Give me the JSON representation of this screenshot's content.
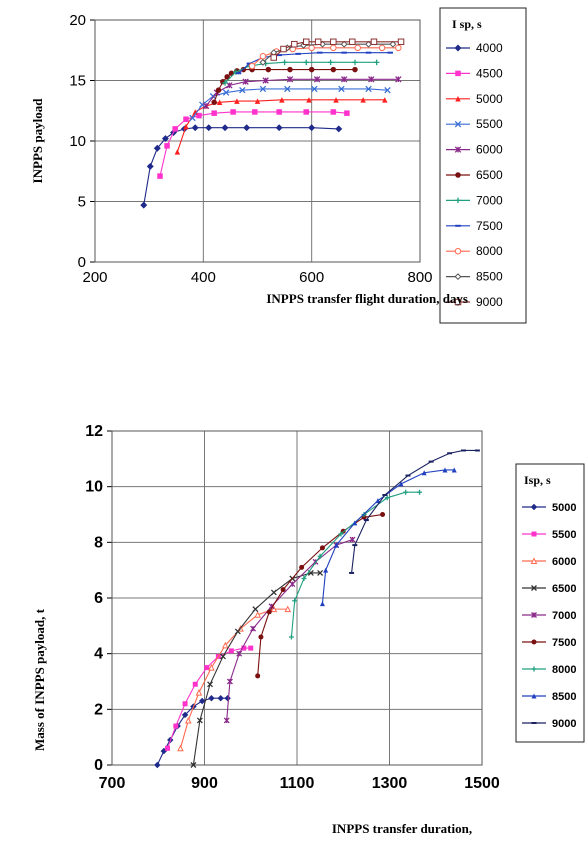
{
  "chart_data": [
    {
      "type": "line",
      "xlabel": "INPPS transfer flight duration, days",
      "ylabel": "INPPS payload",
      "xlim": [
        200,
        800
      ],
      "ylim": [
        0,
        20
      ],
      "xticks": [
        "200",
        "400",
        "600",
        "800"
      ],
      "yticks": [
        "0",
        "5",
        "10",
        "15",
        "20"
      ],
      "grid": true,
      "legend_title": "I sp, s",
      "legend_position": "right",
      "series": [
        {
          "name": "4000",
          "color": "#1f2a8a",
          "marker": "diamond-filled",
          "x": [
            290,
            302,
            315,
            330,
            345,
            365,
            385,
            410,
            440,
            480,
            540,
            600,
            650
          ],
          "y": [
            4.7,
            7.9,
            9.4,
            10.2,
            10.7,
            11.0,
            11.1,
            11.1,
            11.1,
            11.1,
            11.1,
            11.1,
            11.0
          ]
        },
        {
          "name": "4500",
          "color": "#ff33cc",
          "marker": "square-filled",
          "x": [
            320,
            333,
            348,
            368,
            392,
            420,
            455,
            495,
            540,
            590,
            640,
            665
          ],
          "y": [
            7.1,
            9.6,
            11.0,
            11.8,
            12.1,
            12.3,
            12.4,
            12.4,
            12.4,
            12.4,
            12.4,
            12.3
          ]
        },
        {
          "name": "5000",
          "color": "#ff2020",
          "marker": "triangle-filled",
          "x": [
            352,
            368,
            385,
            405,
            430,
            462,
            500,
            545,
            595,
            645,
            695,
            735
          ],
          "y": [
            9.1,
            11.2,
            12.4,
            12.9,
            13.2,
            13.3,
            13.3,
            13.4,
            13.4,
            13.4,
            13.4,
            13.4
          ]
        },
        {
          "name": "5500",
          "color": "#3a6fd8",
          "marker": "x",
          "x": [
            380,
            398,
            418,
            442,
            472,
            510,
            555,
            605,
            655,
            705,
            740
          ],
          "y": [
            11.9,
            13.0,
            13.7,
            14.0,
            14.2,
            14.3,
            14.3,
            14.3,
            14.3,
            14.3,
            14.2
          ]
        },
        {
          "name": "6000",
          "color": "#8a2a8a",
          "marker": "x-bar",
          "x": [
            405,
            425,
            448,
            478,
            515,
            560,
            610,
            660,
            710,
            760
          ],
          "y": [
            12.9,
            14.0,
            14.6,
            14.9,
            15.0,
            15.1,
            15.1,
            15.1,
            15.1,
            15.1
          ]
        },
        {
          "name": "6500",
          "color": "#7a1010",
          "marker": "circle-filled",
          "x": [
            420,
            428,
            436,
            444,
            452,
            462,
            474,
            490,
            520,
            560,
            600,
            640,
            680
          ],
          "y": [
            13.2,
            14.2,
            14.9,
            15.3,
            15.6,
            15.8,
            15.9,
            15.9,
            15.9,
            15.9,
            15.9,
            15.9,
            15.9
          ]
        },
        {
          "name": "7000",
          "color": "#20a080",
          "marker": "plus",
          "x": [
            440,
            460,
            485,
            515,
            550,
            590,
            635,
            680,
            720
          ],
          "y": [
            14.8,
            15.7,
            16.2,
            16.4,
            16.5,
            16.5,
            16.5,
            16.5,
            16.5
          ]
        },
        {
          "name": "7500",
          "color": "#2040c0",
          "marker": "dash",
          "x": [
            465,
            485,
            510,
            540,
            575,
            615,
            660,
            705,
            745
          ],
          "y": [
            15.6,
            16.4,
            16.9,
            17.1,
            17.2,
            17.3,
            17.3,
            17.3,
            17.3
          ]
        },
        {
          "name": "8000",
          "color": "#ff6a50",
          "marker": "circle-open",
          "x": [
            490,
            510,
            535,
            565,
            600,
            640,
            685,
            730,
            760
          ],
          "y": [
            16.2,
            17.0,
            17.4,
            17.6,
            17.7,
            17.7,
            17.7,
            17.7,
            17.7
          ]
        },
        {
          "name": "8500",
          "color": "#555555",
          "marker": "diamond-open",
          "x": [
            510,
            530,
            555,
            585,
            620,
            660,
            705,
            750
          ],
          "y": [
            16.5,
            17.3,
            17.7,
            17.9,
            18.0,
            18.0,
            18.0,
            18.0
          ]
        },
        {
          "name": "9000",
          "color": "#8a3030",
          "marker": "square-open",
          "x": [
            530,
            548,
            568,
            590,
            612,
            640,
            675,
            715,
            765
          ],
          "y": [
            16.9,
            17.6,
            18.0,
            18.2,
            18.2,
            18.2,
            18.2,
            18.2,
            18.2
          ]
        }
      ]
    },
    {
      "type": "line",
      "xlabel": "INPPS transfer duration,",
      "ylabel": "Mass of INPPS payload, t",
      "xlim": [
        700,
        1500
      ],
      "ylim": [
        0,
        12
      ],
      "xticks": [
        "700",
        "900",
        "1100",
        "1300",
        "1500"
      ],
      "yticks": [
        "0",
        "2",
        "4",
        "6",
        "8",
        "10",
        "12"
      ],
      "grid": true,
      "legend_title": "Isp, s",
      "legend_position": "right",
      "series": [
        {
          "name": "5000",
          "color": "#1f2a8a",
          "marker": "diamond-filled",
          "x": [
            798,
            812,
            826,
            842,
            858,
            876,
            895,
            915,
            935,
            950
          ],
          "y": [
            0.0,
            0.5,
            0.9,
            1.4,
            1.8,
            2.1,
            2.3,
            2.4,
            2.4,
            2.4
          ]
        },
        {
          "name": "5500",
          "color": "#ff33cc",
          "marker": "square-filled",
          "x": [
            820,
            838,
            858,
            880,
            905,
            930,
            958,
            985,
            1000
          ],
          "y": [
            0.6,
            1.4,
            2.2,
            2.9,
            3.5,
            3.9,
            4.1,
            4.2,
            4.2
          ]
        },
        {
          "name": "6000",
          "color": "#ff6a50",
          "marker": "triangle-open",
          "x": [
            848,
            865,
            888,
            915,
            945,
            978,
            1015,
            1050,
            1080
          ],
          "y": [
            0.6,
            1.6,
            2.6,
            3.5,
            4.3,
            4.9,
            5.4,
            5.6,
            5.6
          ]
        },
        {
          "name": "6500",
          "color": "#333333",
          "marker": "x",
          "x": [
            876,
            890,
            912,
            940,
            972,
            1010,
            1050,
            1090,
            1130,
            1150
          ],
          "y": [
            0.0,
            1.6,
            2.9,
            3.9,
            4.8,
            5.6,
            6.2,
            6.7,
            6.9,
            6.9
          ]
        },
        {
          "name": "7000",
          "color": "#8a2a8a",
          "marker": "x-bar",
          "x": [
            948,
            955,
            975,
            1005,
            1045,
            1090,
            1140,
            1185,
            1220
          ],
          "y": [
            1.6,
            3.0,
            4.0,
            4.9,
            5.7,
            6.5,
            7.3,
            7.9,
            8.1
          ]
        },
        {
          "name": "7500",
          "color": "#7a1010",
          "marker": "circle-filled",
          "x": [
            1015,
            1022,
            1040,
            1070,
            1110,
            1155,
            1200,
            1245,
            1285
          ],
          "y": [
            3.2,
            4.6,
            5.5,
            6.3,
            7.1,
            7.8,
            8.4,
            8.9,
            9.0
          ]
        },
        {
          "name": "8000",
          "color": "#20a080",
          "marker": "plus",
          "x": [
            1088,
            1095,
            1115,
            1150,
            1195,
            1245,
            1295,
            1335,
            1365
          ],
          "y": [
            4.6,
            5.9,
            6.7,
            7.5,
            8.3,
            9.0,
            9.6,
            9.8,
            9.8
          ]
        },
        {
          "name": "8500",
          "color": "#2040c0",
          "marker": "triangle-filled",
          "x": [
            1155,
            1162,
            1185,
            1225,
            1275,
            1325,
            1375,
            1420,
            1440
          ],
          "y": [
            5.8,
            7.0,
            7.9,
            8.7,
            9.5,
            10.1,
            10.5,
            10.6,
            10.6
          ]
        },
        {
          "name": "9000",
          "color": "#1a2260",
          "marker": "dash",
          "x": [
            1218,
            1225,
            1250,
            1290,
            1340,
            1390,
            1430,
            1460,
            1490
          ],
          "y": [
            6.9,
            7.9,
            8.8,
            9.7,
            10.4,
            10.9,
            11.2,
            11.3,
            11.3
          ]
        }
      ]
    }
  ]
}
